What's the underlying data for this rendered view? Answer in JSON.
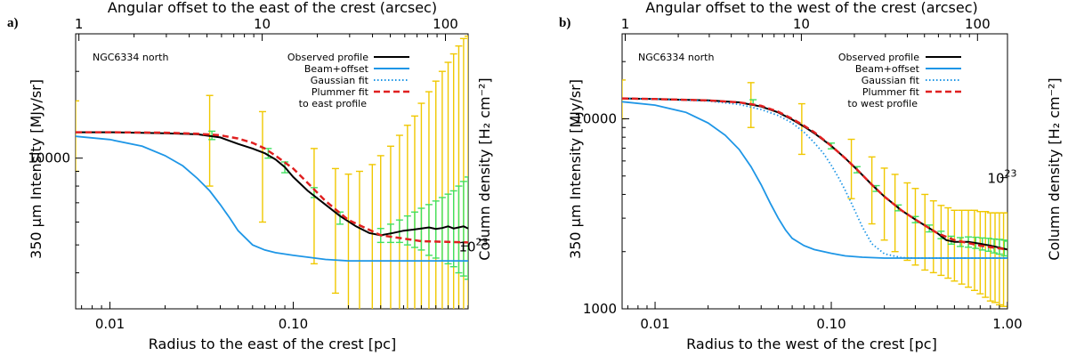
{
  "chart_data": [
    {
      "type": "line",
      "panel_label": "a)",
      "object_label": "NGC6334 north",
      "title": "Angular offset to the east of the crest (arcsec)",
      "xlabel": "Radius to the east of the crest [pc]",
      "ylabel": "350 μm Intensity [MJy/sr]",
      "ylabel_right": "Column density [H₂ cm⁻²]",
      "xscale": "log",
      "yscale": "log",
      "xlim": [
        0.0065,
        0.9
      ],
      "ylim": [
        3000,
        27000
      ],
      "top_xlim": [
        0.96,
        133
      ],
      "x_ticks": [
        0.01,
        0.1
      ],
      "x_tick_labels": [
        "0.01",
        "0.10"
      ],
      "top_ticks": [
        1,
        10,
        100
      ],
      "top_tick_labels": [
        "1",
        "10",
        "100"
      ],
      "y_ticks": [
        10000
      ],
      "y_tick_labels": [
        "10000"
      ],
      "right_ticks": [
        4960
      ],
      "right_tick_labels": [
        "10²³"
      ],
      "legend": {
        "placement": "top-right",
        "entries": [
          {
            "label": "Observed profile",
            "color": "#000000",
            "style": "solid"
          },
          {
            "label": "Beam+offset",
            "color": "#1e96e6",
            "style": "solid"
          },
          {
            "label": "Gaussian fit",
            "color": "#1e96e6",
            "style": "dotted"
          },
          {
            "label": "Plummer fit",
            "color": "#e02020",
            "style": "dashed",
            "extra": "to east profile"
          }
        ]
      },
      "series": [
        {
          "name": "Observed profile",
          "color": "#000000",
          "style": "solid",
          "x": [
            0.0065,
            0.01,
            0.02,
            0.03,
            0.04,
            0.05,
            0.06,
            0.07,
            0.08,
            0.09,
            0.1,
            0.12,
            0.15,
            0.18,
            0.22,
            0.26,
            0.3,
            0.35,
            0.4,
            0.45,
            0.5,
            0.55,
            0.6,
            0.65,
            0.7,
            0.75,
            0.8,
            0.85,
            0.9
          ],
          "y": [
            12300,
            12300,
            12200,
            12100,
            11800,
            11200,
            10800,
            10400,
            9900,
            9300,
            8600,
            7700,
            6900,
            6300,
            5800,
            5500,
            5400,
            5500,
            5600,
            5650,
            5700,
            5750,
            5680,
            5720,
            5800,
            5700,
            5750,
            5800,
            5700
          ]
        },
        {
          "name": "Beam+offset",
          "color": "#1e96e6",
          "style": "solid",
          "x": [
            0.0065,
            0.01,
            0.015,
            0.02,
            0.025,
            0.03,
            0.035,
            0.04,
            0.045,
            0.05,
            0.06,
            0.07,
            0.08,
            0.1,
            0.15,
            0.2,
            0.3,
            0.5,
            0.9
          ],
          "y": [
            11900,
            11600,
            11000,
            10200,
            9400,
            8500,
            7700,
            6900,
            6200,
            5600,
            5000,
            4800,
            4700,
            4600,
            4450,
            4400,
            4400,
            4400,
            4400
          ]
        },
        {
          "name": "Plummer fit to east profile",
          "color": "#e02020",
          "style": "dashed",
          "x": [
            0.0065,
            0.01,
            0.02,
            0.03,
            0.04,
            0.05,
            0.06,
            0.07,
            0.08,
            0.1,
            0.12,
            0.15,
            0.2,
            0.3,
            0.5,
            0.9
          ],
          "y": [
            12300,
            12300,
            12250,
            12150,
            12000,
            11700,
            11300,
            10800,
            10200,
            9200,
            8200,
            7100,
            6100,
            5400,
            5150,
            5100
          ]
        }
      ],
      "error_bars": [
        {
          "name": "yellow",
          "color": "#f0c800",
          "x": [
            0.0065,
            0.035,
            0.068,
            0.13,
            0.17,
            0.2,
            0.23,
            0.27,
            0.3,
            0.34,
            0.38,
            0.42,
            0.46,
            0.5,
            0.55,
            0.6,
            0.65,
            0.7,
            0.75,
            0.8,
            0.85,
            0.9
          ],
          "y": [
            12300,
            12000,
            10500,
            7600,
            6300,
            5800,
            5500,
            5400,
            5400,
            5500,
            5600,
            5650,
            5700,
            5750,
            5700,
            5700,
            5750,
            5800,
            5700,
            5750,
            5800,
            5700
          ],
          "low": [
            9000,
            8000,
            6000,
            4300,
            3400,
            3000,
            3000,
            3000,
            3000,
            3000,
            3000,
            3000,
            3000,
            3000,
            3000,
            3000,
            3000,
            3000,
            3000,
            3000,
            3000,
            3000
          ],
          "high": [
            15800,
            16500,
            14500,
            10800,
            9200,
            8800,
            9000,
            9500,
            10200,
            11000,
            12000,
            13000,
            14000,
            15500,
            17000,
            18500,
            20000,
            21500,
            23000,
            24500,
            26000,
            26500
          ]
        },
        {
          "name": "green",
          "color": "#40e060",
          "x": [
            0.036,
            0.073,
            0.09,
            0.13,
            0.18,
            0.3,
            0.34,
            0.38,
            0.42,
            0.46,
            0.5,
            0.55,
            0.6,
            0.65,
            0.7,
            0.75,
            0.8,
            0.85,
            0.9
          ],
          "y": [
            12000,
            10400,
            9300,
            7600,
            6200,
            5400,
            5500,
            5600,
            5650,
            5700,
            5750,
            5700,
            5700,
            5750,
            5800,
            5700,
            5750,
            5800,
            5700
          ],
          "low": [
            11600,
            10000,
            8900,
            7300,
            5900,
            5100,
            5100,
            5100,
            5000,
            4900,
            4800,
            4600,
            4500,
            4400,
            4300,
            4200,
            4000,
            3900,
            3800
          ],
          "high": [
            12400,
            10800,
            9700,
            7900,
            6500,
            5700,
            5900,
            6100,
            6300,
            6500,
            6700,
            6900,
            7100,
            7300,
            7500,
            7700,
            8000,
            8300,
            8600
          ]
        }
      ]
    },
    {
      "type": "line",
      "panel_label": "b)",
      "object_label": "NGC6334 north",
      "title": "Angular offset to the west of the crest (arcsec)",
      "xlabel": "Radius to the west of the crest [pc]",
      "ylabel": "350 μm Intensity [MJy/sr]",
      "ylabel_right": "Column density [H₂ cm⁻²]",
      "xscale": "log",
      "yscale": "log",
      "xlim": [
        0.0065,
        1.0
      ],
      "ylim": [
        1000,
        28000
      ],
      "top_xlim": [
        0.96,
        148
      ],
      "x_ticks": [
        0.01,
        0.1,
        1.0
      ],
      "x_tick_labels": [
        "0.01",
        "0.10",
        "1.00"
      ],
      "top_ticks": [
        1,
        10,
        100
      ],
      "top_tick_labels": [
        "1",
        "10",
        "100"
      ],
      "y_ticks": [
        1000,
        10000
      ],
      "y_tick_labels": [
        "1000",
        "10000"
      ],
      "right_ticks": [
        4900
      ],
      "right_tick_labels": [
        "10²³"
      ],
      "legend": {
        "placement": "top-right",
        "entries": [
          {
            "label": "Observed profile",
            "color": "#000000",
            "style": "solid"
          },
          {
            "label": "Beam+offset",
            "color": "#1e96e6",
            "style": "solid"
          },
          {
            "label": "Gaussian fit",
            "color": "#1e96e6",
            "style": "dotted"
          },
          {
            "label": "Plummer fit",
            "color": "#e02020",
            "style": "dashed",
            "extra": "to west profile"
          }
        ]
      },
      "series": [
        {
          "name": "Observed profile",
          "color": "#000000",
          "style": "solid",
          "x": [
            0.0065,
            0.01,
            0.02,
            0.03,
            0.04,
            0.05,
            0.06,
            0.07,
            0.08,
            0.1,
            0.12,
            0.14,
            0.17,
            0.2,
            0.25,
            0.3,
            0.35,
            0.4,
            0.45,
            0.5,
            0.6,
            0.7,
            0.8,
            0.9,
            1.0
          ],
          "y": [
            12800,
            12700,
            12500,
            12200,
            11600,
            10800,
            9900,
            9100,
            8400,
            7200,
            6200,
            5400,
            4500,
            3900,
            3300,
            2950,
            2700,
            2500,
            2300,
            2250,
            2250,
            2200,
            2150,
            2100,
            2050
          ]
        },
        {
          "name": "Beam+offset",
          "color": "#1e96e6",
          "style": "solid",
          "x": [
            0.0065,
            0.01,
            0.015,
            0.02,
            0.025,
            0.03,
            0.035,
            0.04,
            0.045,
            0.05,
            0.055,
            0.06,
            0.07,
            0.08,
            0.1,
            0.12,
            0.15,
            0.2,
            0.3,
            0.5,
            1.0
          ],
          "y": [
            12300,
            11800,
            10800,
            9500,
            8200,
            6900,
            5600,
            4500,
            3600,
            3000,
            2600,
            2350,
            2150,
            2050,
            1960,
            1900,
            1870,
            1850,
            1850,
            1850,
            1850
          ]
        },
        {
          "name": "Gaussian fit",
          "color": "#1e96e6",
          "style": "dotted",
          "x": [
            0.0065,
            0.01,
            0.02,
            0.03,
            0.04,
            0.05,
            0.06,
            0.07,
            0.08,
            0.09,
            0.1,
            0.11,
            0.12,
            0.13,
            0.14,
            0.15,
            0.17,
            0.2,
            0.25,
            0.3,
            0.5,
            1.0
          ],
          "y": [
            12800,
            12700,
            12400,
            11900,
            11200,
            10400,
            9500,
            8500,
            7500,
            6600,
            5700,
            4900,
            4200,
            3600,
            3100,
            2700,
            2200,
            1950,
            1860,
            1850,
            1850,
            1850
          ]
        },
        {
          "name": "Plummer fit to west profile",
          "color": "#e02020",
          "style": "dashed",
          "x": [
            0.0065,
            0.01,
            0.02,
            0.03,
            0.04,
            0.05,
            0.06,
            0.07,
            0.08,
            0.1,
            0.12,
            0.14,
            0.17,
            0.2,
            0.25,
            0.3,
            0.4,
            0.5,
            0.7,
            1.0
          ],
          "y": [
            12800,
            12700,
            12500,
            12200,
            11700,
            10900,
            10000,
            9200,
            8500,
            7200,
            6200,
            5400,
            4500,
            3900,
            3300,
            2950,
            2500,
            2300,
            2150,
            2050
          ]
        }
      ],
      "error_bars": [
        {
          "name": "yellow",
          "color": "#f0c800",
          "x": [
            0.0065,
            0.035,
            0.068,
            0.13,
            0.17,
            0.2,
            0.23,
            0.27,
            0.3,
            0.34,
            0.38,
            0.42,
            0.46,
            0.5,
            0.55,
            0.6,
            0.65,
            0.7,
            0.75,
            0.8,
            0.85,
            0.9,
            0.95,
            1.0
          ],
          "y": [
            12800,
            12200,
            9300,
            5700,
            4500,
            3900,
            3500,
            3100,
            2950,
            2800,
            2600,
            2450,
            2300,
            2250,
            2250,
            2250,
            2230,
            2200,
            2180,
            2150,
            2130,
            2100,
            2080,
            2050
          ],
          "low": [
            10000,
            9000,
            6500,
            3800,
            2800,
            2300,
            2000,
            1800,
            1700,
            1600,
            1550,
            1500,
            1450,
            1400,
            1350,
            1300,
            1250,
            1200,
            1150,
            1100,
            1080,
            1050,
            1030,
            1000
          ],
          "high": [
            16000,
            15500,
            12000,
            7800,
            6300,
            5500,
            5100,
            4600,
            4300,
            4000,
            3700,
            3500,
            3400,
            3300,
            3300,
            3300,
            3300,
            3250,
            3250,
            3200,
            3200,
            3200,
            3200,
            3200
          ]
        },
        {
          "name": "green",
          "color": "#40e060",
          "x": [
            0.036,
            0.1,
            0.14,
            0.18,
            0.24,
            0.3,
            0.36,
            0.42,
            0.48,
            0.54,
            0.6,
            0.66,
            0.72,
            0.78,
            0.84,
            0.9,
            0.96,
            1.0
          ],
          "y": [
            12200,
            7200,
            5400,
            4300,
            3400,
            2950,
            2650,
            2450,
            2300,
            2250,
            2250,
            2230,
            2200,
            2180,
            2150,
            2130,
            2100,
            2050
          ],
          "low": [
            11800,
            6950,
            5200,
            4150,
            3280,
            2840,
            2540,
            2340,
            2190,
            2130,
            2110,
            2080,
            2040,
            2010,
            1970,
            1940,
            1900,
            1850
          ],
          "high": [
            12600,
            7450,
            5600,
            4450,
            3520,
            3060,
            2760,
            2560,
            2410,
            2370,
            2390,
            2380,
            2360,
            2350,
            2330,
            2320,
            2300,
            2270
          ]
        }
      ]
    }
  ]
}
